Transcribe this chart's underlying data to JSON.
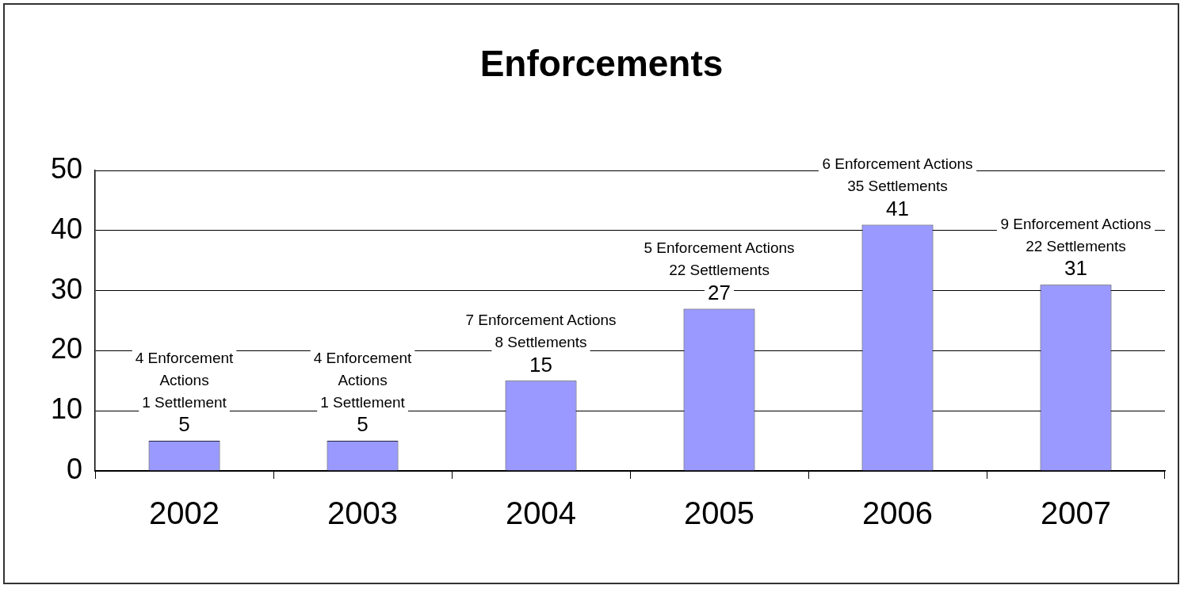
{
  "chart_data": {
    "type": "bar",
    "title": "Enforcements",
    "categories": [
      "2002",
      "2003",
      "2004",
      "2005",
      "2006",
      "2007"
    ],
    "values": [
      5,
      5,
      15,
      27,
      41,
      31
    ],
    "color": "#9999ff",
    "ylim": [
      0,
      50
    ],
    "yticks": [
      0,
      10,
      20,
      30,
      40,
      50
    ],
    "grid": "y",
    "data_labels": true,
    "legend": false,
    "annotations": [
      {
        "text": "4 Enforcement\nActions\n1 Settlement",
        "x": "2002",
        "y": 5
      },
      {
        "text": "4 Enforcement\nActions\n1 Settlement",
        "x": "2003",
        "y": 5
      },
      {
        "text": "7 Enforcement Actions\n8 Settlements",
        "x": "2004",
        "y": 15
      },
      {
        "text": "5 Enforcement Actions\n22 Settlements",
        "x": "2005",
        "y": 27
      },
      {
        "text": "6 Enforcement Actions\n35 Settlements",
        "x": "2006",
        "y": 41
      },
      {
        "text": "9 Enforcement Actions\n22 Settlements",
        "x": "2007",
        "y": 31
      }
    ]
  }
}
